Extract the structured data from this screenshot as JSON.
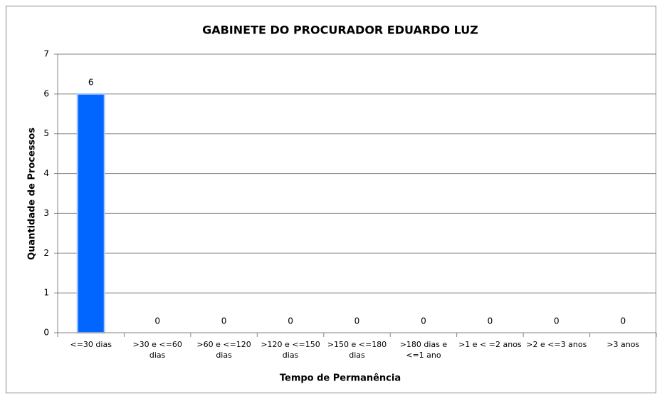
{
  "chart_data": {
    "type": "bar",
    "title": "GABINETE DO PROCURADOR EDUARDO LUZ",
    "x_label": "Tempo de Permanência",
    "y_label": "Quantidade de Processos",
    "categories": [
      "<=30 dias",
      ">30 e <=60 dias",
      ">60 e <=120 dias",
      ">120 e <=150 dias",
      ">150 e <=180 dias",
      ">180 dias e <=1 ano",
      ">1 e < =2 anos",
      ">2 e <=3 anos",
      ">3 anos"
    ],
    "values": [
      6,
      0,
      0,
      0,
      0,
      0,
      0,
      0,
      0
    ],
    "color": "#0066ff",
    "ylim": [
      0,
      7
    ],
    "yticks": [
      0,
      1,
      2,
      3,
      4,
      5,
      6,
      7
    ],
    "grid": true
  }
}
